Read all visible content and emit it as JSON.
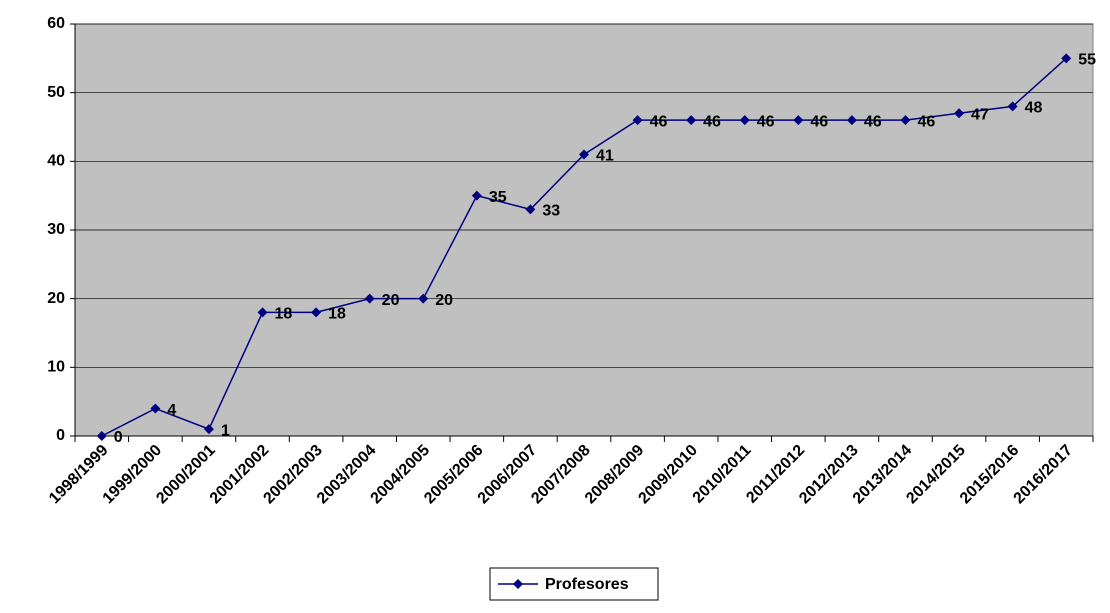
{
  "chart_data": {
    "type": "line",
    "categories": [
      "1998/1999",
      "1999/2000",
      "2000/2001",
      "2001/2002",
      "2002/2003",
      "2003/2004",
      "2004/2005",
      "2005/2006",
      "2006/2007",
      "2007/2008",
      "2008/2009",
      "2009/2010",
      "2010/2011",
      "2011/2012",
      "2012/2013",
      "2013/2014",
      "2014/2015",
      "2015/2016",
      "2016/2017"
    ],
    "series": [
      {
        "name": "Profesores",
        "color": "#000080",
        "values": [
          0,
          4,
          1,
          18,
          18,
          20,
          20,
          35,
          33,
          41,
          46,
          46,
          46,
          46,
          46,
          46,
          47,
          48,
          55
        ]
      }
    ],
    "ylim": [
      0,
      60
    ],
    "yticks": [
      0,
      10,
      20,
      30,
      40,
      50,
      60
    ],
    "grid": true,
    "legend": "bottom"
  }
}
